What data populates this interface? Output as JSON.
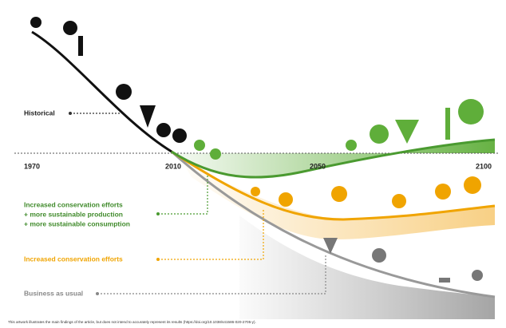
{
  "axis": {
    "years": [
      "1970",
      "2010",
      "2050",
      "2100"
    ]
  },
  "labels": {
    "historical": "Historical",
    "green": [
      "Increased conservation efforts",
      "+ more sustainable production",
      "+ more sustainable consumption"
    ],
    "orange": "Increased conservation efforts",
    "grey": "Business as usual"
  },
  "caption": "This artwork illustrates the main findings of the article, but does not intend to accurately represent its results (https://doi.org/10.1038/s41586-020-2705-y)."
}
